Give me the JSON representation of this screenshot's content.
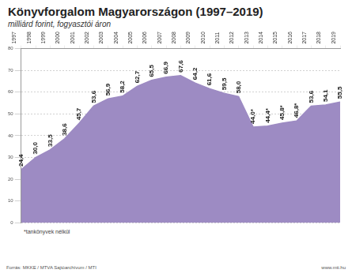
{
  "chart_data": {
    "type": "area",
    "title": "Könyvforgalom Magyarországon (1997–2019)",
    "subtitle": "milliárd forint, fogyasztói áron",
    "annotations": [
      "*tankönyvek nélkül",
      "Forrás: MKKE / MTVA Sajtóarchívum / MTI",
      "www.mti.hu"
    ],
    "categories": [
      "1997",
      "1998",
      "1999",
      "2000",
      "2001",
      "2002",
      "2003",
      "2004",
      "2005",
      "2006",
      "2007",
      "2008",
      "2009",
      "2010",
      "2011",
      "2012",
      "2013",
      "2014",
      "2015",
      "2016",
      "2017",
      "2018",
      "2019"
    ],
    "values": [
      24.4,
      30.0,
      33.5,
      38.6,
      45.7,
      53.6,
      56.9,
      58.2,
      62.7,
      65.5,
      66.9,
      67.6,
      64.2,
      61.6,
      59.5,
      58.0,
      44.0,
      44.4,
      45.8,
      46.8,
      53.6,
      54.1,
      55.5
    ],
    "value_labels": [
      "24,4",
      "30,0",
      "33,5",
      "38,6",
      "45,7",
      "53,6",
      "56,9",
      "58,2",
      "62,7",
      "65,5",
      "66,9",
      "67,6",
      "64,2",
      "61,6",
      "59,5",
      "58,0",
      "44,0*",
      "44,4*",
      "45,8*",
      "46,8*",
      "53,6",
      "54,1",
      "55,5"
    ],
    "data_labels": true,
    "color": "#9d8bc3",
    "ylim": [
      0,
      80
    ],
    "yticks": [
      0,
      10,
      20,
      30,
      40,
      50,
      60,
      70,
      80
    ],
    "grid": true
  }
}
